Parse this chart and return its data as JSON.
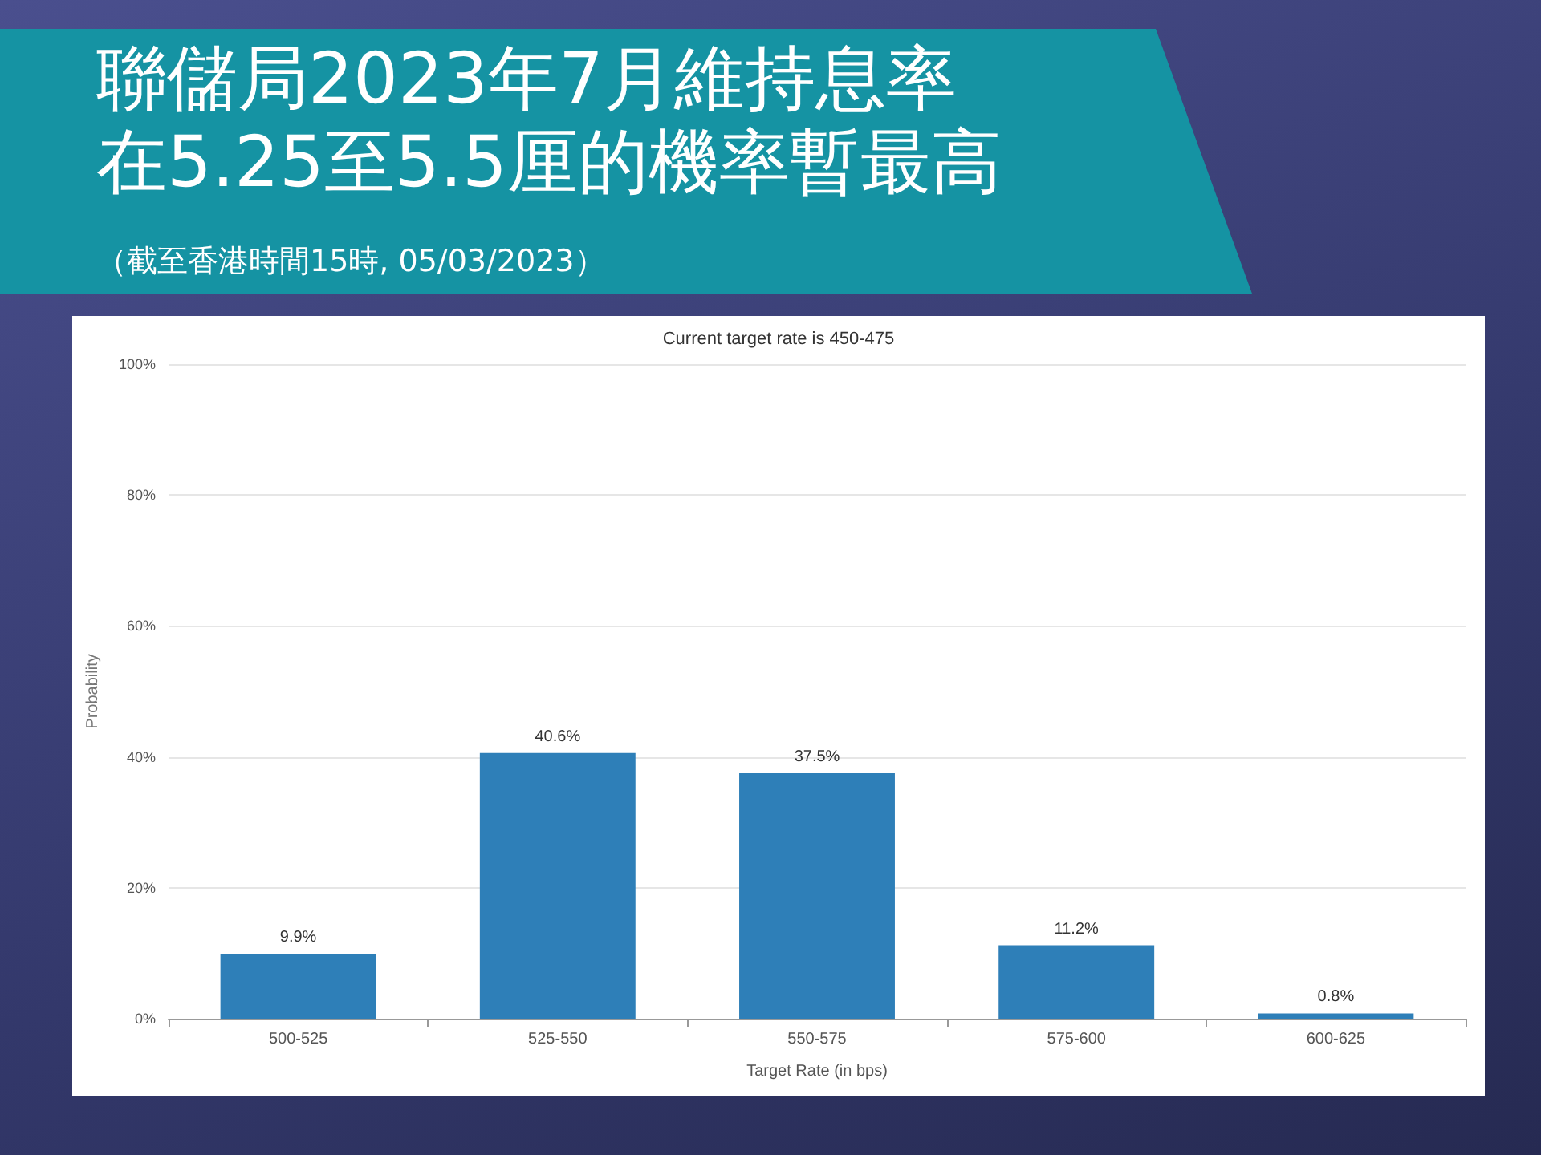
{
  "chart_data": {
    "type": "bar",
    "title": "聯儲局2023年7月維持息率在5.25至5.5厘的機率暫最高",
    "subtitle": "Current target rate is 450-475",
    "annotations": [
      "（截至香港時間15時, 05/03/2023）"
    ],
    "xlabel": "Target Rate (in bps)",
    "ylabel": "Probability",
    "categories": [
      "500-525",
      "525-550",
      "550-575",
      "575-600",
      "600-625"
    ],
    "values": [
      9.9,
      40.6,
      37.5,
      11.2,
      0.8
    ],
    "color": "#2e7fb8",
    "value_labels": [
      "9.9%",
      "40.6%",
      "37.5%",
      "11.2%",
      "0.8%"
    ],
    "ylim": [
      0,
      100
    ],
    "yticks": [
      {
        "value": 0,
        "label": "0%"
      },
      {
        "value": 20,
        "label": "20%"
      },
      {
        "value": 40,
        "label": "40%"
      },
      {
        "value": 60,
        "label": "60%"
      },
      {
        "value": 80,
        "label": "80%"
      },
      {
        "value": 100,
        "label": "100%"
      }
    ],
    "grid": "y"
  }
}
